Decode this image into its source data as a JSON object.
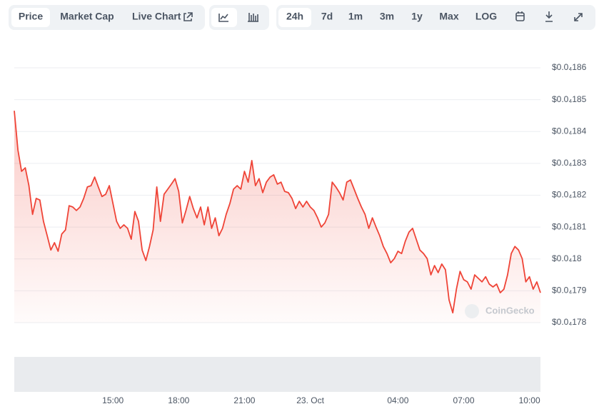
{
  "toolbar": {
    "tabs": [
      "Price",
      "Market Cap",
      "Live Chart"
    ],
    "ranges": [
      "24h",
      "7d",
      "1m",
      "3m",
      "1y",
      "Max",
      "LOG"
    ]
  },
  "chart_data": {
    "type": "line",
    "watermark": "CoinGecko",
    "color": "#ef4437",
    "x": [
      630,
      640,
      650,
      660,
      670,
      680,
      690,
      700,
      710,
      720,
      730,
      740,
      750,
      760,
      770,
      780,
      790,
      800,
      810,
      820,
      830,
      840,
      850,
      860,
      870,
      880,
      890,
      900,
      910,
      920,
      930,
      940,
      950,
      960,
      970,
      980,
      990,
      1000,
      1010,
      1020,
      1030,
      1040,
      1050,
      1060,
      1070,
      1080,
      1090,
      1100,
      1110,
      1120,
      1130,
      1140,
      1150,
      1160,
      1170,
      1180,
      1190,
      1200,
      1210,
      1220,
      1230,
      1240,
      1250,
      1260,
      1270,
      1280,
      1290,
      1300,
      1310,
      1320,
      1330,
      1340,
      1350,
      1360,
      1370,
      1380,
      1390,
      1400,
      1410,
      1420,
      1430,
      1440,
      1450,
      1460,
      1470,
      1480,
      1490,
      1500,
      1510,
      1520,
      1530,
      1540,
      1550,
      1560,
      1570,
      1580,
      1590,
      1600,
      1610,
      1620,
      1630,
      1640,
      1650,
      1660,
      1670,
      1680,
      1690,
      1700,
      1710,
      1720,
      1730,
      1740,
      1750,
      1760,
      1770,
      1780,
      1790,
      1800,
      1810,
      1820,
      1830,
      1840,
      1850,
      1860,
      1870,
      1880,
      1890,
      1900,
      1910,
      1920,
      1930,
      1940,
      1950,
      1960,
      1970,
      1980,
      1990,
      2000,
      2010,
      2020,
      2030,
      2040,
      2050,
      2060,
      2070
    ],
    "values": [
      1.8465e-05,
      1.8342e-05,
      1.8275e-05,
      1.8286e-05,
      1.823e-05,
      1.814e-05,
      1.819e-05,
      1.8185e-05,
      1.8118e-05,
      1.8073e-05,
      1.8028e-05,
      1.8051e-05,
      1.8024e-05,
      1.8078e-05,
      1.8091e-05,
      1.8167e-05,
      1.8163e-05,
      1.8152e-05,
      1.8163e-05,
      1.819e-05,
      1.8226e-05,
      1.823e-05,
      1.8257e-05,
      1.8226e-05,
      1.8196e-05,
      1.8203e-05,
      1.823e-05,
      1.8174e-05,
      1.8118e-05,
      1.8096e-05,
      1.8107e-05,
      1.8096e-05,
      1.8062e-05,
      1.8149e-05,
      1.8118e-05,
      1.8028e-05,
      1.7995e-05,
      1.8039e-05,
      1.8091e-05,
      1.8226e-05,
      1.8118e-05,
      1.8203e-05,
      1.8219e-05,
      1.8235e-05,
      1.8252e-05,
      1.8212e-05,
      1.8113e-05,
      1.8152e-05,
      1.8196e-05,
      1.8158e-05,
      1.8129e-05,
      1.8163e-05,
      1.8107e-05,
      1.8163e-05,
      1.8096e-05,
      1.8129e-05,
      1.8073e-05,
      1.8096e-05,
      1.814e-05,
      1.8174e-05,
      1.8219e-05,
      1.823e-05,
      1.8219e-05,
      1.8275e-05,
      1.8241e-05,
      1.8309e-05,
      1.823e-05,
      1.8252e-05,
      1.8208e-05,
      1.8241e-05,
      1.8257e-05,
      1.8264e-05,
      1.8235e-05,
      1.8241e-05,
      1.8212e-05,
      1.8208e-05,
      1.819e-05,
      1.8158e-05,
      1.8181e-05,
      1.8163e-05,
      1.8181e-05,
      1.8163e-05,
      1.8152e-05,
      1.8129e-05,
      1.81e-05,
      1.8113e-05,
      1.814e-05,
      1.8241e-05,
      1.8226e-05,
      1.8208e-05,
      1.8185e-05,
      1.8241e-05,
      1.8248e-05,
      1.8219e-05,
      1.819e-05,
      1.8163e-05,
      1.814e-05,
      1.8096e-05,
      1.8129e-05,
      1.81e-05,
      1.8073e-05,
      1.8039e-05,
      1.8017e-05,
      1.7988e-05,
      1.8001e-05,
      1.8024e-05,
      1.8017e-05,
      1.8055e-05,
      1.8084e-05,
      1.8096e-05,
      1.8062e-05,
      1.8028e-05,
      1.8017e-05,
      1.8001e-05,
      1.795e-05,
      1.7979e-05,
      1.7957e-05,
      1.7984e-05,
      1.7966e-05,
      1.7871e-05,
      1.7831e-05,
      1.7905e-05,
      1.7961e-05,
      1.7935e-05,
      1.7928e-05,
      1.7905e-05,
      1.795e-05,
      1.7939e-05,
      1.7928e-05,
      1.7944e-05,
      1.7921e-05,
      1.7912e-05,
      1.7921e-05,
      1.7894e-05,
      1.7905e-05,
      1.795e-05,
      1.8017e-05,
      1.8039e-05,
      1.8028e-05,
      1.8001e-05,
      1.7928e-05,
      1.7944e-05,
      1.7905e-05,
      1.7928e-05,
      1.7894e-05
    ],
    "xlim": [
      630,
      2070
    ],
    "xticks": [
      {
        "value": 900,
        "label": "15:00"
      },
      {
        "value": 1080,
        "label": "18:00"
      },
      {
        "value": 1260,
        "label": "21:00"
      },
      {
        "value": 1440,
        "label": "23. Oct"
      },
      {
        "value": 1680,
        "label": "04:00"
      },
      {
        "value": 1860,
        "label": "07:00"
      },
      {
        "value": 2040,
        "label": "10:00"
      }
    ],
    "ylim": [
      1.78e-05,
      1.86e-05
    ],
    "yticks": [
      {
        "value": 1.78e-05,
        "label": "$0.0₄178"
      },
      {
        "value": 1.79e-05,
        "label": "$0.0₄179"
      },
      {
        "value": 1.8e-05,
        "label": "$0.0₄18"
      },
      {
        "value": 1.81e-05,
        "label": "$0.0₄181"
      },
      {
        "value": 1.82e-05,
        "label": "$0.0₄182"
      },
      {
        "value": 1.83e-05,
        "label": "$0.0₄183"
      },
      {
        "value": 1.84e-05,
        "label": "$0.0₄184"
      },
      {
        "value": 1.85e-05,
        "label": "$0.0₄185"
      },
      {
        "value": 1.86e-05,
        "label": "$0.0₄186"
      }
    ],
    "grid": true
  }
}
